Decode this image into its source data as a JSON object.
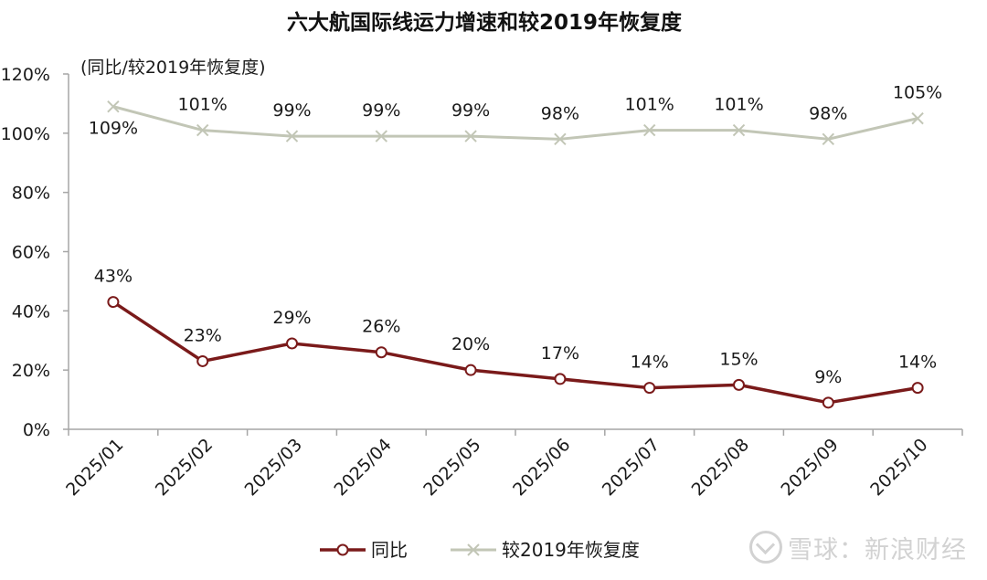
{
  "chart_data": {
    "type": "line",
    "title": "六大航国际线运力增速和较2019年恢复度",
    "subtitle": "(同比/较2019年恢复度)",
    "categories": [
      "2025/01",
      "2025/02",
      "2025/03",
      "2025/04",
      "2025/05",
      "2025/06",
      "2025/07",
      "2025/08",
      "2025/09",
      "2025/10"
    ],
    "ylim": [
      0,
      120
    ],
    "yticks": [
      "0%",
      "20%",
      "40%",
      "60%",
      "80%",
      "100%",
      "120%"
    ],
    "grid": false,
    "legend_position": "bottom",
    "series": [
      {
        "name": "同比",
        "color": "#7a1a1a",
        "marker": "circle",
        "values": [
          43,
          23,
          29,
          26,
          20,
          17,
          14,
          15,
          9,
          14
        ],
        "labels": [
          "43%",
          "23%",
          "29%",
          "26%",
          "20%",
          "17%",
          "14%",
          "15%",
          "9%",
          "14%"
        ]
      },
      {
        "name": "较2019年恢复度",
        "color": "#c2c6b6",
        "marker": "x",
        "values": [
          109,
          101,
          99,
          99,
          99,
          98,
          101,
          101,
          98,
          105
        ],
        "labels": [
          "109%",
          "101%",
          "99%",
          "99%",
          "99%",
          "98%",
          "101%",
          "101%",
          "98%",
          "105%"
        ]
      }
    ]
  },
  "watermark": "雪球：新浪财经"
}
